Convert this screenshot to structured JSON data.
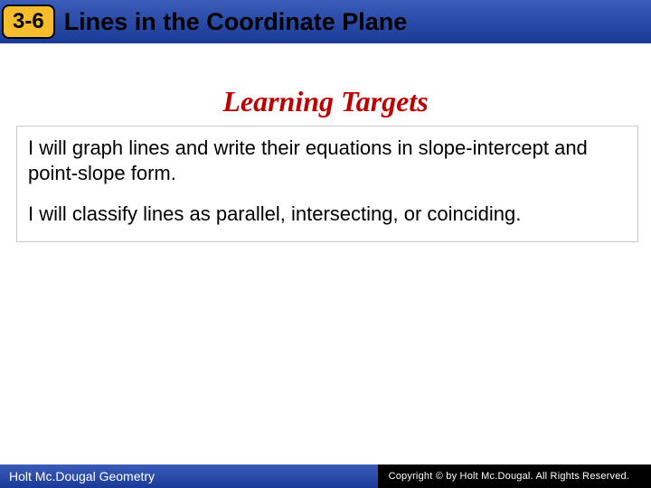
{
  "header": {
    "badge": "3-6",
    "title": "Lines in the Coordinate Plane",
    "bar_gradient_top": "#3b5cb8",
    "bar_gradient_bottom": "#1a3a98",
    "badge_bg": "#f5bc2e"
  },
  "section": {
    "heading": "Learning Targets",
    "heading_color": "#c00000",
    "heading_fontsize": 32,
    "targets": [
      "I will graph lines and write their equations in slope-intercept and point-slope form.",
      "I will classify lines as parallel, intersecting, or coinciding."
    ],
    "box_border_color": "#c9c9c9"
  },
  "footer": {
    "left_text": "Holt Mc.Dougal Geometry",
    "right_text": "Copyright © by Holt Mc.Dougal. All Rights Reserved.",
    "left_bg_top": "#3b5cb8",
    "left_bg_bottom": "#1a3a98",
    "right_bg": "#000000"
  }
}
